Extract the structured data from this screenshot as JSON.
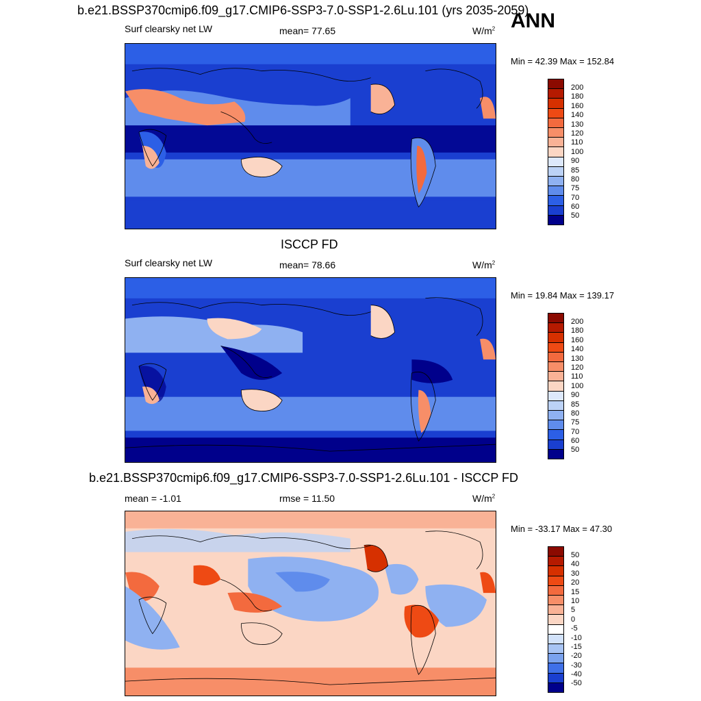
{
  "season": "ANN",
  "units_base": "W/m",
  "units_exp": "2",
  "panels": [
    {
      "title": "b.e21.BSSP370cmip6.f09_g17.CMIP6-SSP3-7.0-SSP1-2.6Lu.101 (yrs 2035-2059)",
      "left_label": "Surf clearsky net LW",
      "center_label": "mean=  77.65",
      "minmax": "Min =  42.39 Max = 152.84",
      "colorbar_labels": [
        "200",
        "180",
        "160",
        "140",
        "130",
        "120",
        "110",
        "100",
        "90",
        "85",
        "80",
        "75",
        "70",
        "60",
        "50"
      ]
    },
    {
      "title": "ISCCP FD",
      "left_label": "Surf clearsky net LW",
      "center_label": "mean=  78.66",
      "minmax": "Min =  19.84 Max = 139.17",
      "colorbar_labels": [
        "200",
        "180",
        "160",
        "140",
        "130",
        "120",
        "110",
        "100",
        "90",
        "85",
        "80",
        "75",
        "70",
        "60",
        "50"
      ]
    },
    {
      "title": "b.e21.BSSP370cmip6.f09_g17.CMIP6-SSP3-7.0-SSP1-2.6Lu.101 - ISCCP FD",
      "left_label": "mean =  -1.01",
      "center_label": "rmse =  11.50",
      "minmax": "Min = -33.17 Max =  47.30",
      "colorbar_labels": [
        "50",
        "40",
        "30",
        "20",
        "15",
        "10",
        "5",
        "0",
        "-5",
        "-10",
        "-15",
        "-20",
        "-30",
        "-40",
        "-50"
      ]
    }
  ],
  "colors": {
    "scale": [
      "#8b0a00",
      "#b51a00",
      "#d63000",
      "#ee4a14",
      "#f36a3e",
      "#f78e68",
      "#f9b296",
      "#fbd6c4",
      "#dde8fb",
      "#bcd2f6",
      "#8fb1f1",
      "#5f8cec",
      "#2c5fe6",
      "#1a3fd0",
      "#00008b"
    ],
    "diff_scale": [
      "#8b0a00",
      "#b51a00",
      "#d63000",
      "#ee4a14",
      "#f36a3e",
      "#f78e68",
      "#f9b296",
      "#fbd6c4",
      "#ffffff",
      "#d2e2fa",
      "#a8c4f4",
      "#7aa2ee",
      "#3f70e8",
      "#1a3fd0",
      "#00008b"
    ]
  }
}
